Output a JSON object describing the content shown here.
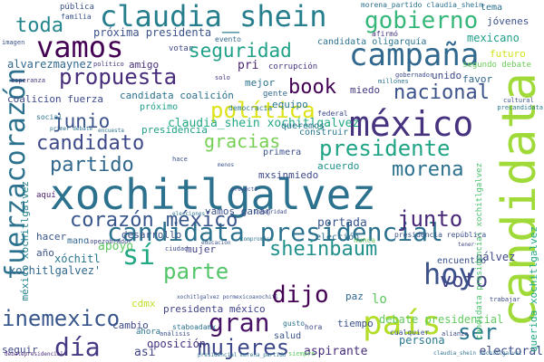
{
  "words": [
    {
      "text": "xochitlgalvez",
      "color": "#2c728e"
    },
    {
      "text": "méxico",
      "color": "#46327e"
    },
    {
      "text": "candidata",
      "color": "#a0da39"
    },
    {
      "text": "claudia_shein",
      "color": "#277f8e"
    },
    {
      "text": "campaña",
      "color": "#31688e"
    },
    {
      "text": "candidata presidencial",
      "color": "#2c728e"
    },
    {
      "text": "vamos",
      "color": "#440154"
    },
    {
      "text": "gobierno",
      "color": "#35b779"
    },
    {
      "text": "fuerzacorazón",
      "color": "#2c728e"
    },
    {
      "text": "país",
      "color": "#b5de2b"
    },
    {
      "text": "hoy",
      "color": "#3b528b"
    },
    {
      "text": "propuesta",
      "color": "#472d7b"
    },
    {
      "text": "seguridad",
      "color": "#1fa187"
    },
    {
      "text": "nacional",
      "color": "#3b528b"
    },
    {
      "text": "presidente",
      "color": "#20a486"
    },
    {
      "text": "política",
      "color": "#dde318"
    },
    {
      "text": "book",
      "color": "#440154"
    },
    {
      "text": "gracias",
      "color": "#75d054"
    },
    {
      "text": "candidato",
      "color": "#3e4989"
    },
    {
      "text": "partido",
      "color": "#31688e"
    },
    {
      "text": "junio",
      "color": "#3b528b"
    },
    {
      "text": "morena",
      "color": "#2c728e"
    },
    {
      "text": "corazón méxico",
      "color": "#39568c"
    },
    {
      "text": "junto",
      "color": "#482878"
    },
    {
      "text": "sheinbaum",
      "color": "#21918c"
    },
    {
      "text": "parte",
      "color": "#52c569"
    },
    {
      "text": "voto",
      "color": "#414487"
    },
    {
      "text": "dijo",
      "color": "#440154"
    },
    {
      "text": "sí",
      "color": "#22a884"
    },
    {
      "text": "gran",
      "color": "#481467"
    },
    {
      "text": "mujeres",
      "color": "#3e4989"
    },
    {
      "text": "inemexico",
      "color": "#39568c"
    },
    {
      "text": "día",
      "color": "#443983"
    },
    {
      "text": "ser",
      "color": "#2a788e"
    },
    {
      "text": "toda",
      "color": "#25858e"
    },
    {
      "text": "pri",
      "color": "#481f70"
    },
    {
      "text": "claudia_shein xochitlgalvez",
      "color": "#22a884"
    },
    {
      "text": "próxima presidenta",
      "color": "#3b528b"
    },
    {
      "text": "candidata oligarquía",
      "color": "#2c728e"
    },
    {
      "text": "mexicano",
      "color": "#1f9e89"
    },
    {
      "text": "jóvenes",
      "color": "#3b528b"
    },
    {
      "text": "tema",
      "color": "#2c728e"
    },
    {
      "text": "futuro",
      "color": "#d2e21b"
    },
    {
      "text": "favor",
      "color": "#31688e"
    },
    {
      "text": "alvarezmaynez",
      "color": "#31688e"
    },
    {
      "text": "corrupción",
      "color": "#46327e"
    },
    {
      "text": "unido",
      "color": "#3e4989"
    },
    {
      "text": "segundo debate",
      "color": "#6ccd5a"
    },
    {
      "text": "amigo",
      "color": "#472d7b"
    },
    {
      "text": "candidata coalición",
      "color": "#2c728e"
    },
    {
      "text": "coalicion fuerza",
      "color": "#3e4989"
    },
    {
      "text": "próximo",
      "color": "#1f9e89"
    },
    {
      "text": "mejor",
      "color": "#2c728e"
    },
    {
      "text": "miedo",
      "color": "#453781"
    },
    {
      "text": "equipo",
      "color": "#2a788e"
    },
    {
      "text": "gente",
      "color": "#31688e"
    },
    {
      "text": "democracia",
      "color": "#2a788e"
    },
    {
      "text": "presidencia",
      "color": "#1fa187"
    },
    {
      "text": "queremos",
      "color": "#2c728e"
    },
    {
      "text": "primera",
      "color": "#3b528b"
    },
    {
      "text": "construir",
      "color": "#2a788e"
    },
    {
      "text": "mxsinmiedo",
      "color": "#3e4989"
    },
    {
      "text": "acuerdo",
      "color": "#21918c"
    },
    {
      "text": "portada",
      "color": "#39568c"
    },
    {
      "text": "vamos ganar",
      "color": "#3b528b"
    },
    {
      "text": "desarrollo",
      "color": "#3b528b"
    },
    {
      "text": "hacer",
      "color": "#39568c"
    },
    {
      "text": "mano",
      "color": "#31688e"
    },
    {
      "text": "elección",
      "color": "#2c728e"
    },
    {
      "text": "apoyo",
      "color": "#5ec962"
    },
    {
      "text": "mujer",
      "color": "#414487"
    },
    {
      "text": "gálvez",
      "color": "#3e4989"
    },
    {
      "text": "encuentro",
      "color": "#3b528b"
    },
    {
      "text": "xóchitl",
      "color": "#2a788e"
    },
    {
      "text": "xochitlgalvez'",
      "color": "#31688e"
    },
    {
      "text": "año",
      "color": "#3b528b"
    },
    {
      "text": "presidenta méxico",
      "color": "#414487"
    },
    {
      "text": "paz",
      "color": "#31688e"
    },
    {
      "text": "cdmx",
      "color": "#bddf26"
    },
    {
      "text": "cambio",
      "color": "#3e4989"
    },
    {
      "text": "lo",
      "color": "#5ec962"
    },
    {
      "text": "debate presidencial",
      "color": "#63cb5f"
    },
    {
      "text": "persona",
      "color": "#2a788e"
    },
    {
      "text": "oposición",
      "color": "#46327e"
    },
    {
      "text": "tiempo",
      "color": "#3b528b"
    },
    {
      "text": "aspirante",
      "color": "#472d7b"
    },
    {
      "text": "electoral",
      "color": "#3e4989"
    },
    {
      "text": "así",
      "color": "#414487"
    },
    {
      "text": "seguir",
      "color": "#404688"
    },
    {
      "text": "ahora",
      "color": "#2c728e"
    },
    {
      "text": "salud",
      "color": "#3b528b"
    },
    {
      "text": "querida xochitlgalvez",
      "color": "#22a884"
    },
    {
      "text": "candidata presidencial xochitlgalvez",
      "color": "#4ac16d"
    },
    {
      "text": "méxico xochitlgalvez",
      "color": "#26828e"
    },
    {
      "text": "aquí",
      "color": "#481f70"
    },
    {
      "text": "nunca",
      "color": "#6ccd5a"
    },
    {
      "text": "cualquier",
      "color": "#3b528b"
    },
    {
      "text": "pública",
      "color": "#3b528b"
    },
    {
      "text": "familia",
      "color": "#3b528b"
    },
    {
      "text": "morena_partido claudia_shein",
      "color": "#2c728e"
    },
    {
      "text": "afirmó",
      "color": "#46327e"
    },
    {
      "text": "votar",
      "color": "#3e4989"
    },
    {
      "text": "evento",
      "color": "#31688e"
    },
    {
      "text": "imagen",
      "color": "#3b528b"
    },
    {
      "text": "político",
      "color": "#46327e"
    },
    {
      "text": "ciudad",
      "color": "#3e4989"
    },
    {
      "text": "staboadamx",
      "color": "#2c728e"
    },
    {
      "text": "análisis",
      "color": "#3b528b"
    },
    {
      "text": "hora",
      "color": "#3e4989"
    },
    {
      "text": "gusto",
      "color": "#2c728e"
    },
    {
      "text": "alianza",
      "color": "#3e4989"
    },
    {
      "text": "cultural",
      "color": "#3b528b"
    },
    {
      "text": "encuesta",
      "color": "#2c728e"
    },
    {
      "text": "federal",
      "color": "#3e4989"
    },
    {
      "text": "gobernador",
      "color": "#3e4989"
    },
    {
      "text": "social",
      "color": "#2c728e"
    },
    {
      "text": "millones",
      "color": "#2c728e"
    },
    {
      "text": "esperanza",
      "color": "#46327e"
    },
    {
      "text": "solo",
      "color": "#46327e"
    },
    {
      "text": "proyecto",
      "color": "#3e4989"
    },
    {
      "text": "compromiso",
      "color": "#2c728e"
    },
    {
      "text": "presidencia república",
      "color": "#3b528b"
    },
    {
      "text": "lopezobrador",
      "color": "#3e4989"
    },
    {
      "text": "menos",
      "color": "#3b528b"
    },
    {
      "text": "hace",
      "color": "#3b528b"
    },
    {
      "text": "tener",
      "color": "#3e4989"
    },
    {
      "text": "primer debate",
      "color": "#2c728e"
    },
    {
      "text": "precandidata",
      "color": "#2a788e"
    },
    {
      "text": "trabajar",
      "color": "#3e4989"
    },
    {
      "text": "integridad",
      "color": "#3e4989"
    },
    {
      "text": "elecciones",
      "color": "#2c728e"
    },
    {
      "text": "educación",
      "color": "#3b528b"
    },
    {
      "text": "presidencial morena_partido",
      "color": "#2c728e"
    },
    {
      "text": "siempre",
      "color": "#5ec962"
    },
    {
      "text": "debatepresidencial",
      "color": "#482878"
    },
    {
      "text": "claudia_shein xochitlgalvez",
      "color": "#2c728e"
    },
    {
      "text": "xochitlgalvez pormexicoaxochitl",
      "color": "#3b528b"
    }
  ]
}
